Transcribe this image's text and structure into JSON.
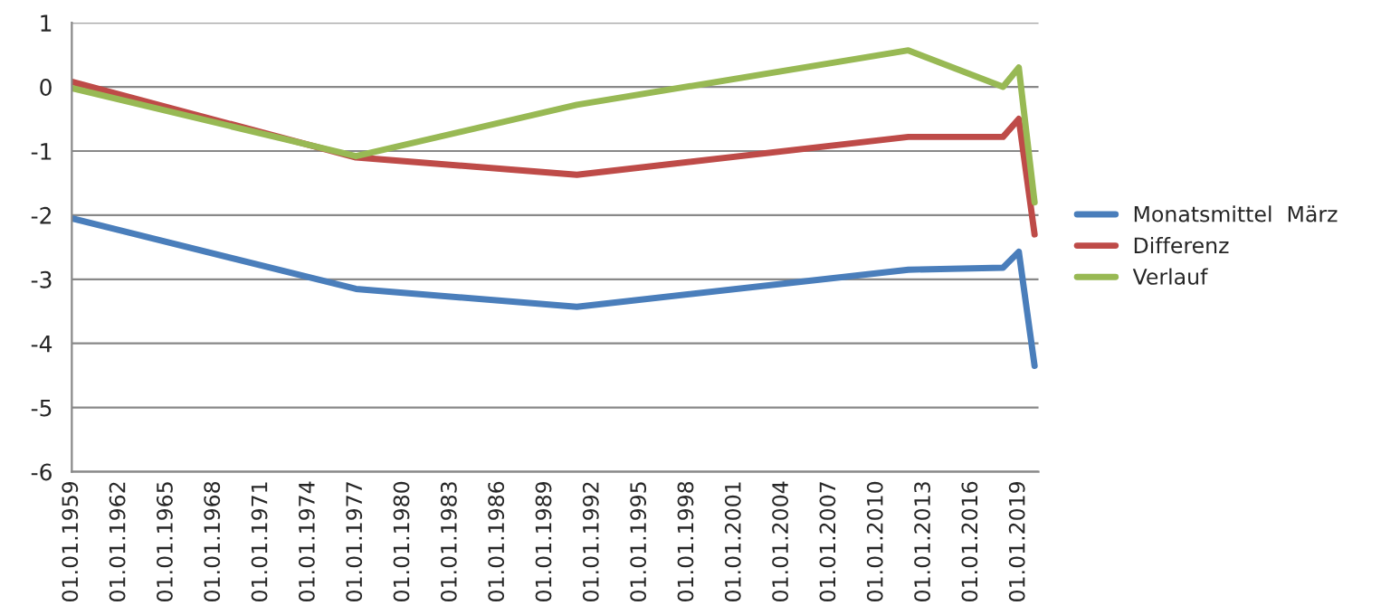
{
  "chart_data": {
    "type": "line",
    "x": [
      "1959",
      "1977",
      "1991",
      "2012",
      "2018",
      "2019",
      "2020"
    ],
    "series": [
      {
        "name": "Monatsmittel  März",
        "color": "#4a7ebb",
        "values": [
          -2.05,
          -3.15,
          -3.43,
          -2.85,
          -2.82,
          -2.57,
          -4.35
        ]
      },
      {
        "name": "Differenz",
        "color": "#be4b48",
        "values": [
          0.08,
          -1.1,
          -1.37,
          -0.78,
          -0.78,
          -0.5,
          -2.3
        ]
      },
      {
        "name": "Verlauf",
        "color": "#98b954",
        "values": [
          -0.02,
          -1.08,
          -0.28,
          0.57,
          0.0,
          0.3,
          -1.8
        ]
      }
    ],
    "xlim": [
      "1959-01-01",
      "2020-04-01"
    ],
    "xticks": [
      {
        "value": "1959-01-01",
        "label": "01.01.1959"
      },
      {
        "value": "1962-01-01",
        "label": "01.01.1962"
      },
      {
        "value": "1965-01-01",
        "label": "01.01.1965"
      },
      {
        "value": "1968-01-01",
        "label": "01.01.1968"
      },
      {
        "value": "1971-01-01",
        "label": "01.01.1971"
      },
      {
        "value": "1974-01-01",
        "label": "01.01.1974"
      },
      {
        "value": "1977-01-01",
        "label": "01.01.1977"
      },
      {
        "value": "1980-01-01",
        "label": "01.01.1980"
      },
      {
        "value": "1983-01-01",
        "label": "01.01.1983"
      },
      {
        "value": "1986-01-01",
        "label": "01.01.1986"
      },
      {
        "value": "1989-01-01",
        "label": "01.01.1989"
      },
      {
        "value": "1992-01-01",
        "label": "01.01.1992"
      },
      {
        "value": "1995-01-01",
        "label": "01.01.1995"
      },
      {
        "value": "1998-01-01",
        "label": "01.01.1998"
      },
      {
        "value": "2001-01-01",
        "label": "01.01.2001"
      },
      {
        "value": "2004-01-01",
        "label": "01.01.2004"
      },
      {
        "value": "2007-01-01",
        "label": "01.01.2007"
      },
      {
        "value": "2010-01-01",
        "label": "01.01.2010"
      },
      {
        "value": "2013-01-01",
        "label": "01.01.2013"
      },
      {
        "value": "2016-01-01",
        "label": "01.01.2016"
      },
      {
        "value": "2019-01-01",
        "label": "01.01.2019"
      }
    ],
    "ylim": [
      -6,
      1
    ],
    "yticks": [
      -6,
      -5,
      -4,
      -3,
      -2,
      -1,
      0,
      1
    ],
    "grid": "y",
    "legend": "right",
    "marker": "none",
    "line_style": "solid"
  }
}
